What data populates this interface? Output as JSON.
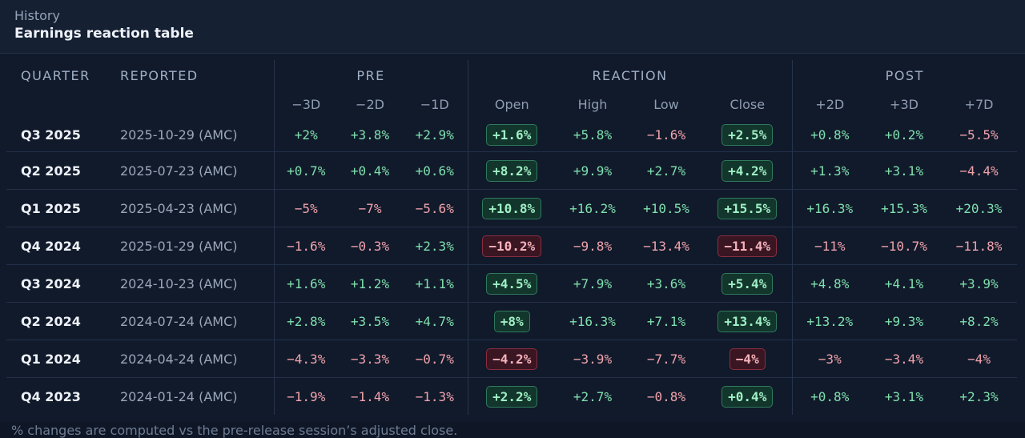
{
  "header": {
    "label": "History",
    "title": "Earnings reaction table"
  },
  "groups": {
    "quarter": "QUARTER",
    "reported": "REPORTED",
    "pre": "PRE",
    "reaction": "REACTION",
    "post": "POST"
  },
  "subheaders": [
    "−3D",
    "−2D",
    "−1D",
    "Open",
    "High",
    "Low",
    "Close",
    "+2D",
    "+3D",
    "+7D"
  ],
  "rows": [
    {
      "quarter": "Q3 2025",
      "reported": "2025-10-29 (AMC)",
      "values": [
        "+2%",
        "+3.8%",
        "+2.9%",
        "+1.6%",
        "+5.8%",
        "−1.6%",
        "+2.5%",
        "+0.8%",
        "+0.2%",
        "−5.5%"
      ]
    },
    {
      "quarter": "Q2 2025",
      "reported": "2025-07-23 (AMC)",
      "values": [
        "+0.7%",
        "+0.4%",
        "+0.6%",
        "+8.2%",
        "+9.9%",
        "+2.7%",
        "+4.2%",
        "+1.3%",
        "+3.1%",
        "−4.4%"
      ]
    },
    {
      "quarter": "Q1 2025",
      "reported": "2025-04-23 (AMC)",
      "values": [
        "−5%",
        "−7%",
        "−5.6%",
        "+10.8%",
        "+16.2%",
        "+10.5%",
        "+15.5%",
        "+16.3%",
        "+15.3%",
        "+20.3%"
      ]
    },
    {
      "quarter": "Q4 2024",
      "reported": "2025-01-29 (AMC)",
      "values": [
        "−1.6%",
        "−0.3%",
        "+2.3%",
        "−10.2%",
        "−9.8%",
        "−13.4%",
        "−11.4%",
        "−11%",
        "−10.7%",
        "−11.8%"
      ]
    },
    {
      "quarter": "Q3 2024",
      "reported": "2024-10-23 (AMC)",
      "values": [
        "+1.6%",
        "+1.2%",
        "+1.1%",
        "+4.5%",
        "+7.9%",
        "+3.6%",
        "+5.4%",
        "+4.8%",
        "+4.1%",
        "+3.9%"
      ]
    },
    {
      "quarter": "Q2 2024",
      "reported": "2024-07-24 (AMC)",
      "values": [
        "+2.8%",
        "+3.5%",
        "+4.7%",
        "+8%",
        "+16.3%",
        "+7.1%",
        "+13.4%",
        "+13.2%",
        "+9.3%",
        "+8.2%"
      ]
    },
    {
      "quarter": "Q1 2024",
      "reported": "2024-04-24 (AMC)",
      "values": [
        "−4.3%",
        "−3.3%",
        "−0.7%",
        "−4.2%",
        "−3.9%",
        "−7.7%",
        "−4%",
        "−3%",
        "−3.4%",
        "−4%"
      ]
    },
    {
      "quarter": "Q4 2023",
      "reported": "2024-01-24 (AMC)",
      "values": [
        "−1.9%",
        "−1.4%",
        "−1.3%",
        "+2.2%",
        "+2.7%",
        "−0.8%",
        "+0.4%",
        "+0.8%",
        "+3.1%",
        "+2.3%"
      ]
    }
  ],
  "footnote": "% changes are computed vs the pre-release session’s adjusted close."
}
